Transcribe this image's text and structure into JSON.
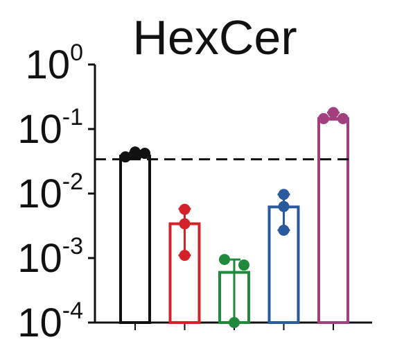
{
  "chart_data": {
    "type": "bar",
    "title": "HexCer",
    "xlabel": "",
    "ylabel": "",
    "yscale": "log",
    "ylim": [
      0.0001,
      1
    ],
    "yticks": [
      {
        "base": "10",
        "exp": "0",
        "value": 1
      },
      {
        "base": "10",
        "exp": "-1",
        "value": 0.1
      },
      {
        "base": "10",
        "exp": "-2",
        "value": 0.01
      },
      {
        "base": "10",
        "exp": "-3",
        "value": 0.001
      },
      {
        "base": "10",
        "exp": "-4",
        "value": 0.0001
      }
    ],
    "reference_line": {
      "value": 0.034,
      "style": "dashed",
      "color": "#111111"
    },
    "bars": [
      {
        "color": "#111111",
        "value": 0.038,
        "err_high": 0.043,
        "err_low": 0.036,
        "points": [
          0.037,
          0.044,
          0.042
        ]
      },
      {
        "color": "#d2232a",
        "value": 0.0034,
        "err_high": 0.0058,
        "err_low": 0.0011,
        "points": [
          0.0057,
          0.0034,
          0.0011
        ]
      },
      {
        "color": "#1f8a3c",
        "value": 0.0006,
        "err_high": 0.00095,
        "err_low": 0.0001,
        "points": [
          0.00095,
          0.00078,
          0.0001
        ]
      },
      {
        "color": "#2a5a9e",
        "value": 0.0062,
        "err_high": 0.0097,
        "err_low": 0.0027,
        "points": [
          0.0097,
          0.0063,
          0.0027
        ]
      },
      {
        "color": "#a2407f",
        "value": 0.145,
        "err_high": 0.18,
        "err_low": 0.14,
        "points": [
          0.18,
          0.145,
          0.145
        ]
      }
    ]
  }
}
